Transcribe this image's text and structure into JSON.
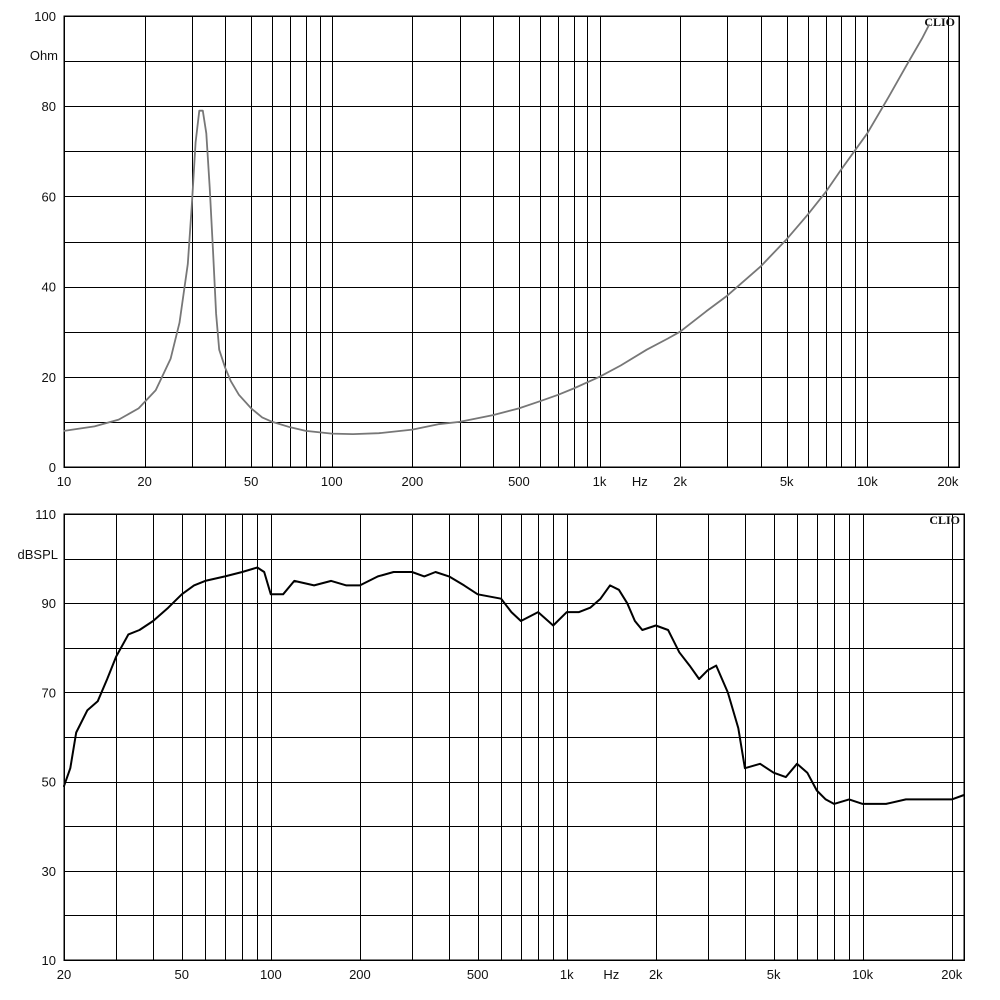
{
  "chart_data": [
    {
      "type": "line",
      "brand": "CLIO",
      "ylabel": "Ohm",
      "xunit": "Hz",
      "x_scale": "log",
      "xlim": [
        10,
        22000
      ],
      "ylim": [
        0,
        100
      ],
      "grid": true,
      "x_ticks": [
        "10",
        "20",
        "50",
        "100",
        "200",
        "500",
        "1k",
        "2k",
        "5k",
        "10k",
        "20k"
      ],
      "y_ticks": [
        "0",
        "20",
        "40",
        "60",
        "80",
        "100"
      ],
      "series": [
        {
          "color": "#777777",
          "x": [
            10,
            13,
            16,
            19,
            22,
            25,
            27,
            29,
            30,
            31,
            32,
            33,
            34,
            35,
            36,
            37,
            38,
            40,
            42,
            45,
            50,
            55,
            60,
            70,
            80,
            100,
            120,
            150,
            200,
            250,
            300,
            400,
            500,
            600,
            700,
            800,
            1000,
            1200,
            1500,
            1800,
            2000,
            2500,
            3000,
            4000,
            5000,
            6000,
            7000,
            8000,
            10000,
            12000,
            14000,
            16000,
            17000
          ],
          "y": [
            8,
            9,
            10.5,
            13,
            17,
            24,
            32,
            45,
            58,
            72,
            79,
            79,
            74,
            62,
            48,
            34,
            26,
            22,
            19,
            16,
            13,
            11,
            10,
            8.8,
            8,
            7.4,
            7.3,
            7.5,
            8.3,
            9.5,
            10,
            11.5,
            13,
            14.6,
            16,
            17.4,
            20,
            22.5,
            26,
            28.5,
            30,
            34.5,
            38,
            44.5,
            50.5,
            56,
            61,
            66,
            74,
            82,
            89,
            95,
            98
          ]
        }
      ]
    },
    {
      "type": "line",
      "brand": "CLIO",
      "ylabel": "dBSPL",
      "xunit": "Hz",
      "x_scale": "log",
      "xlim": [
        20,
        22000
      ],
      "ylim": [
        10,
        110
      ],
      "grid": true,
      "x_ticks": [
        "20",
        "50",
        "100",
        "200",
        "500",
        "1k",
        "2k",
        "5k",
        "10k",
        "20k"
      ],
      "y_ticks": [
        "10",
        "30",
        "50",
        "70",
        "90",
        "110"
      ],
      "series": [
        {
          "color": "#000000",
          "x": [
            20,
            21,
            22,
            24,
            26,
            28,
            30,
            33,
            36,
            40,
            45,
            50,
            55,
            60,
            70,
            80,
            90,
            95,
            100,
            110,
            120,
            140,
            160,
            180,
            200,
            230,
            260,
            300,
            330,
            360,
            400,
            450,
            500,
            600,
            650,
            700,
            800,
            900,
            1000,
            1100,
            1200,
            1300,
            1400,
            1500,
            1600,
            1700,
            1800,
            2000,
            2200,
            2400,
            2600,
            2800,
            3000,
            3200,
            3500,
            3800,
            4000,
            4500,
            5000,
            5500,
            6000,
            6500,
            7000,
            7500,
            8000,
            9000,
            10000,
            12000,
            14000,
            16000,
            18000,
            20000,
            22000
          ],
          "y": [
            49,
            53,
            61,
            66,
            68,
            73,
            78,
            83,
            84,
            86,
            89,
            92,
            94,
            95,
            96,
            97,
            98,
            97,
            92,
            92,
            95,
            94,
            95,
            94,
            94,
            96,
            97,
            97,
            96,
            97,
            96,
            94,
            92,
            91,
            88,
            86,
            88,
            85,
            88,
            88,
            89,
            91,
            94,
            93,
            90,
            86,
            84,
            85,
            84,
            79,
            76,
            73,
            75,
            76,
            70,
            62,
            53,
            54,
            52,
            51,
            54,
            52,
            48,
            46,
            45,
            46,
            45,
            45,
            46,
            46,
            46,
            46,
            47
          ]
        }
      ]
    }
  ]
}
